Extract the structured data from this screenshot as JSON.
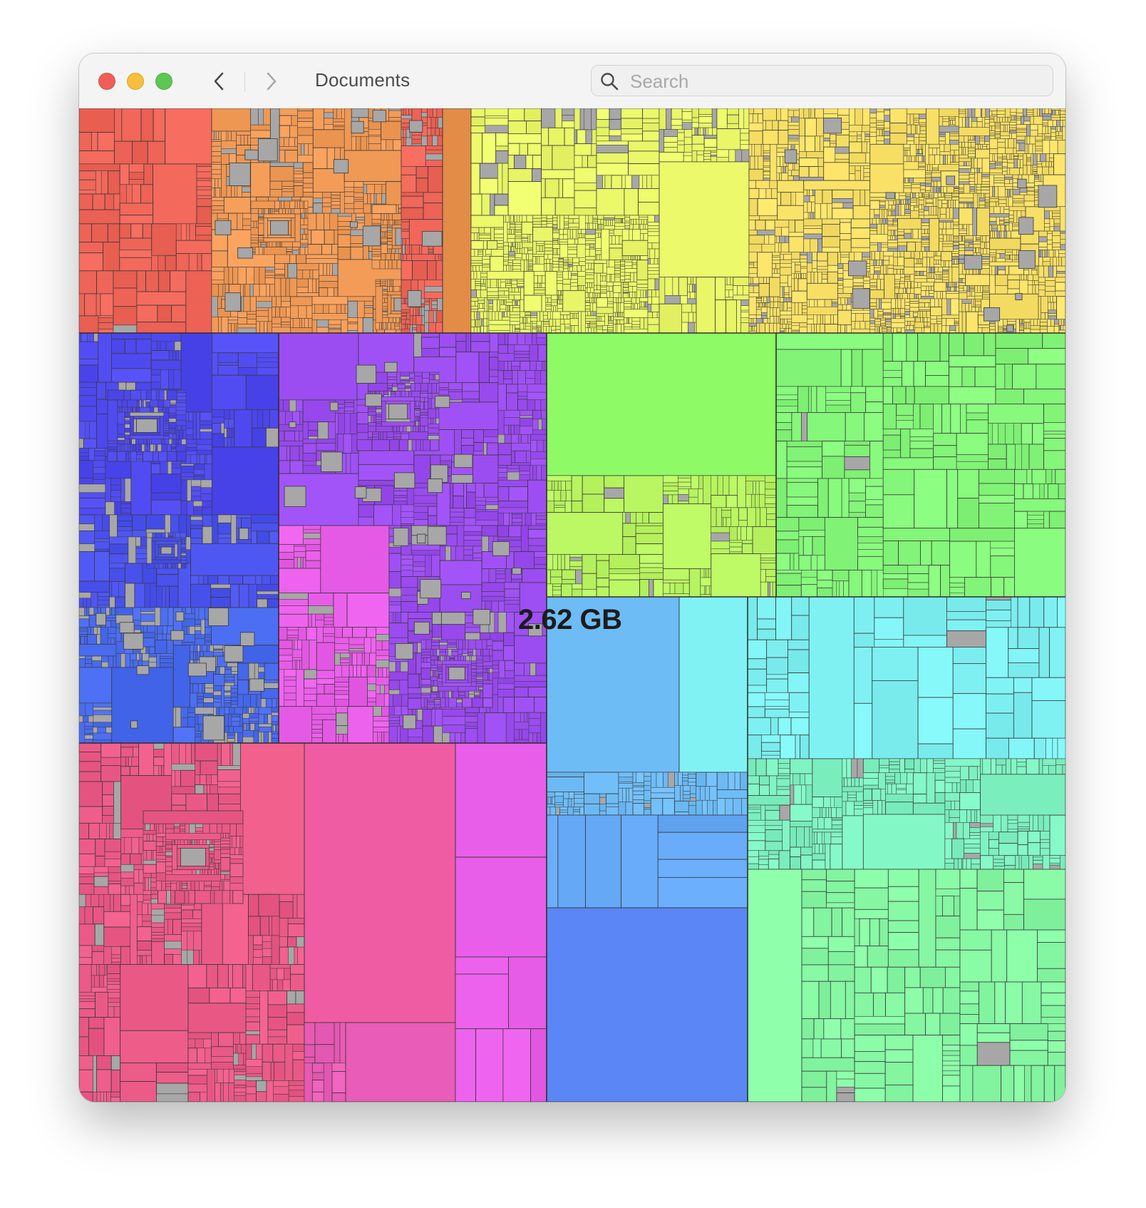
{
  "window": {
    "title": "Documents"
  },
  "toolbar": {
    "back_icon": "chevron-left-icon",
    "forward_icon": "chevron-right-icon"
  },
  "search": {
    "placeholder": "Search",
    "value": "",
    "icon": "magnifying-glass-icon"
  },
  "treemap": {
    "total_size": "2.62 GB",
    "small_file_color": "#a7a7a7",
    "border_color": "#3a3a3a",
    "folders": [
      {
        "id": "red-orange",
        "color": "#ef6558"
      },
      {
        "id": "orange",
        "color": "#f29b57"
      },
      {
        "id": "lime",
        "color": "#eaf86a"
      },
      {
        "id": "yellow",
        "color": "#f9e167"
      },
      {
        "id": "blue",
        "color": "#4f4af0"
      },
      {
        "id": "violet",
        "color": "#9b4cf0"
      },
      {
        "id": "green",
        "color": "#8efb66"
      },
      {
        "id": "magenta",
        "color": "#e95ee9"
      },
      {
        "id": "sky",
        "color": "#6ebcf6"
      },
      {
        "id": "cyan",
        "color": "#80f2f4"
      },
      {
        "id": "pink",
        "color": "#ec5b88"
      },
      {
        "id": "rose",
        "color": "#ef5ca4"
      },
      {
        "id": "mint",
        "color": "#7ff2c2"
      }
    ]
  }
}
